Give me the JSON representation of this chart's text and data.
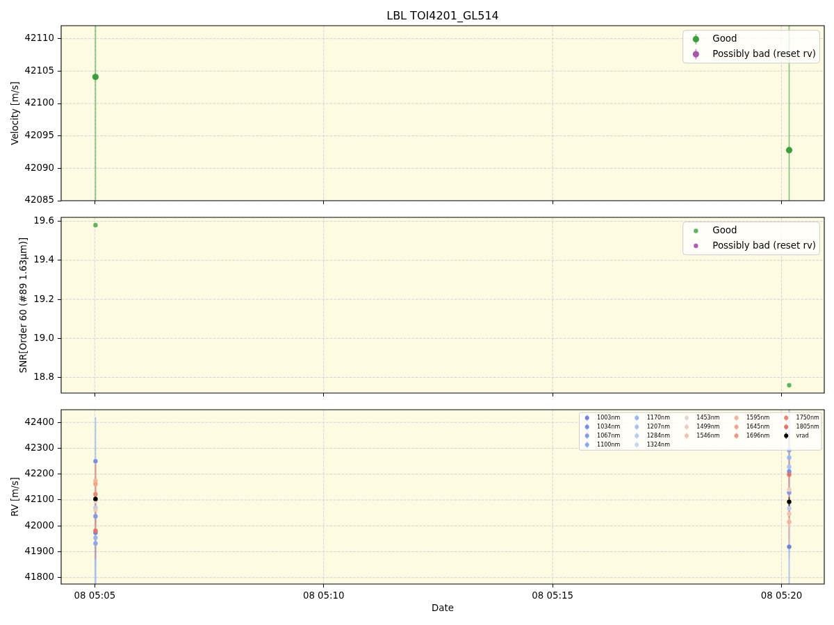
{
  "chart_data": [
    {
      "type": "scatter",
      "title": "LBL TOI4201_GL514",
      "ylabel": "Velocity [m/s]",
      "x": [
        "--01-08T05:05:01",
        "--01-08T05:20:10"
      ],
      "series": [
        {
          "name": "Good",
          "color": "#3c9e3c",
          "values": [
            42104.1,
            42092.8
          ],
          "errors": [
            [
              42085,
              42112
            ],
            [
              42085,
              42112
            ]
          ]
        },
        {
          "name": "Possibly bad (reset rv)",
          "color": "#a757a7",
          "values": [
            null,
            null
          ]
        }
      ],
      "xlim": [
        "--01-08T05:04:16",
        "--01-08T05:20:56"
      ],
      "xticks": [
        "--01-08T05:05",
        "--01-08T05:10",
        "--01-08T05:15",
        "--01-08T05:20"
      ],
      "ylim": [
        42085,
        42112
      ],
      "yticks": [
        42085,
        42090,
        42095,
        42100,
        42105,
        42110
      ],
      "grid": true,
      "legend": "top right",
      "tick_labels": "y",
      "marker": "circle"
    },
    {
      "type": "scatter",
      "ylabel": "SNR[Order 60 (#89 1.63μm)]",
      "x": [
        "--01-08T05:05:01",
        "--01-08T05:20:10"
      ],
      "series": [
        {
          "name": "Good",
          "color": "#5db65d",
          "values": [
            19.58,
            18.76
          ]
        },
        {
          "name": "Possibly bad (reset rv)",
          "color": "#b05cb0",
          "values": [
            null,
            null
          ]
        }
      ],
      "xlim": [
        "--01-08T05:04:16",
        "--01-08T05:20:56"
      ],
      "xticks": [
        "--01-08T05:05",
        "--01-08T05:10",
        "--01-08T05:15",
        "--01-08T05:20"
      ],
      "ylim": [
        18.72,
        19.62
      ],
      "yticks": [
        18.8,
        {
          "value": 19,
          "label": "19.0"
        },
        19.2,
        19.4,
        19.6
      ],
      "grid": true,
      "legend": "top right",
      "tick_labels": "y",
      "marker": "circle"
    },
    {
      "type": "scatter",
      "xlabel": "Date",
      "ylabel": "RV [m/s]",
      "x": [
        "--01-08T05:05:01",
        "--01-08T05:20:10"
      ],
      "series": [
        {
          "name": "1003nm",
          "color": "#6f84dc",
          "values": [
            41974,
            41919
          ],
          "errors": [
            [
              41775,
              42174
            ],
            [
              41775,
              42119
            ]
          ]
        },
        {
          "name": "1034nm",
          "color": "#7890e3",
          "values": [
            42250,
            42210
          ],
          "errors": [
            170,
            200
          ]
        },
        {
          "name": "1067nm",
          "color": "#809be9",
          "values": [
            42037,
            42129
          ],
          "errors": [
            200,
            250
          ]
        },
        {
          "name": "1100nm",
          "color": "#8aa7ef",
          "values": [
            41932,
            42292
          ],
          "errors": [
            [
              41775,
              42132
            ],
            [
              42092,
              42449
            ]
          ]
        },
        {
          "name": "1170nm",
          "color": "#98b6f5",
          "values": [
            41954,
            42264
          ],
          "errors": [
            [
              41775,
              42254
            ],
            [
              41964,
              42449
            ]
          ]
        },
        {
          "name": "1207nm",
          "color": "#a6c2f6",
          "values": [
            null,
            42228
          ],
          "errors": [
            null,
            [
              41878,
              42449
            ]
          ]
        },
        {
          "name": "1284nm",
          "color": "#b8cdf2",
          "values": [
            42070,
            42068
          ],
          "errors": [
            [
              41775,
              42420
            ],
            [
              41775,
              42418
            ]
          ]
        },
        {
          "name": "1324nm",
          "color": "#c9d7ee",
          "values": [
            null,
            null
          ]
        },
        {
          "name": "1453nm",
          "color": "#e4d8d0",
          "values": [
            42095,
            null
          ],
          "errors": [
            120,
            null
          ]
        },
        {
          "name": "1499nm",
          "color": "#efcdbd",
          "values": [
            42062,
            42140
          ],
          "errors": [
            110,
            150
          ]
        },
        {
          "name": "1546nm",
          "color": "#f3c2ab",
          "values": [
            null,
            42046
          ],
          "errors": [
            null,
            120
          ]
        },
        {
          "name": "1595nm",
          "color": "#f4b59c",
          "values": [
            42174,
            42015
          ],
          "errors": [
            65,
            80
          ]
        },
        {
          "name": "1645nm",
          "color": "#f1a78c",
          "values": [
            42162,
            null
          ],
          "errors": [
            75,
            null
          ]
        },
        {
          "name": "1696nm",
          "color": "#ed987d",
          "values": [
            null,
            null
          ]
        },
        {
          "name": "1750nm",
          "color": "#e7876f",
          "values": [
            42122,
            null
          ],
          "errors": [
            120,
            null
          ]
        },
        {
          "name": "1805nm",
          "color": "#e07562",
          "values": [
            41981,
            42198
          ],
          "errors": [
            110,
            167
          ]
        },
        {
          "name": "vrad",
          "color": "#000000",
          "values": [
            42104,
            42093
          ],
          "errors": [
            16,
            18
          ]
        }
      ],
      "xlim": [
        "--01-08T05:04:16",
        "--01-08T05:20:56"
      ],
      "xticks": [
        {
          "value": "--01-08T05:05",
          "label": "08 05:05"
        },
        {
          "value": "--01-08T05:10",
          "label": "08 05:10"
        },
        {
          "value": "--01-08T05:15",
          "label": "08 05:15"
        },
        {
          "value": "--01-08T05:20",
          "label": "08 05:20"
        }
      ],
      "ylim": [
        41775,
        42449
      ],
      "yticks": [
        41800,
        41900,
        42000,
        42100,
        42200,
        42300,
        42400
      ],
      "grid": true,
      "legend": "top right",
      "marker": "circle"
    }
  ]
}
